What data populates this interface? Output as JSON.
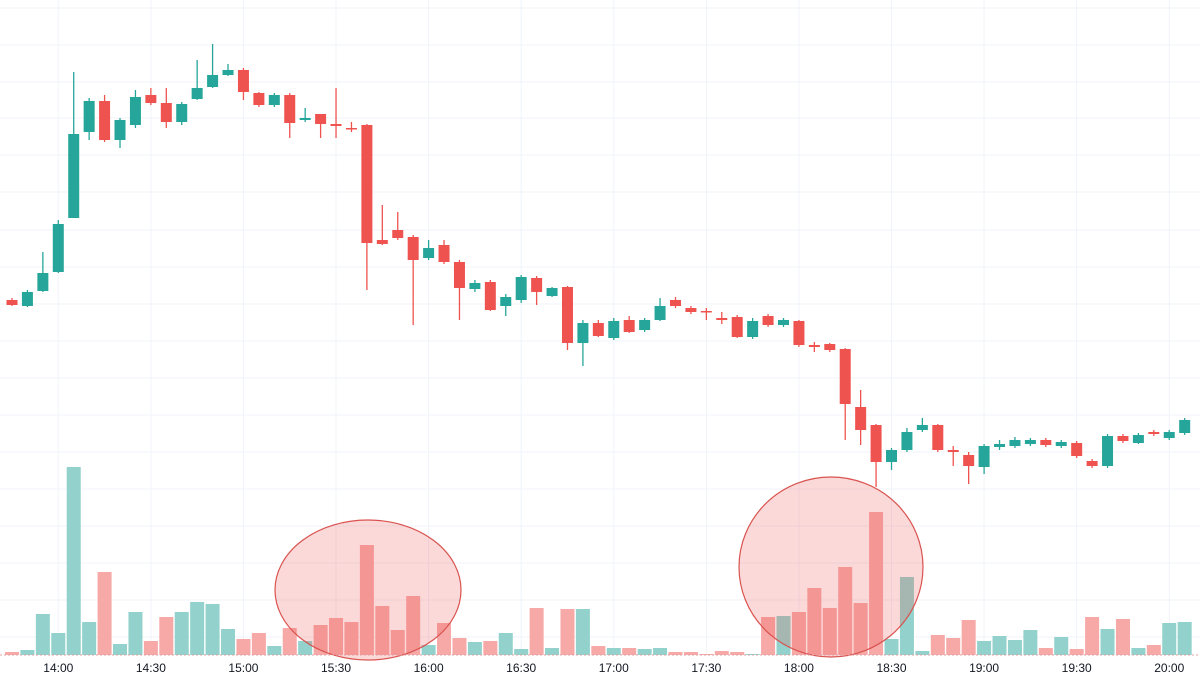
{
  "chart_data": {
    "type": "candlestick",
    "categories": [
      null,
      null,
      null,
      "14:00",
      null,
      null,
      null,
      null,
      null,
      "14:30",
      null,
      null,
      null,
      null,
      null,
      "15:00",
      null,
      null,
      null,
      null,
      null,
      "15:30",
      null,
      null,
      null,
      null,
      null,
      "16:00",
      null,
      null,
      null,
      null,
      null,
      "16:30",
      null,
      null,
      null,
      null,
      null,
      "17:00",
      null,
      null,
      null,
      null,
      null,
      "17:30",
      null,
      null,
      null,
      null,
      null,
      "18:00",
      null,
      null,
      null,
      null,
      null,
      "18:30",
      null,
      null,
      null,
      null,
      null,
      "19:00",
      null,
      null,
      null,
      null,
      null,
      "19:30",
      null,
      null,
      null,
      null,
      null,
      "20:00",
      null
    ],
    "open": [
      200,
      194,
      209,
      228,
      282,
      368,
      399,
      360,
      375,
      405,
      397,
      378,
      401,
      413,
      425,
      430,
      407,
      395,
      405,
      380,
      386,
      376,
      372,
      375,
      260,
      270,
      263,
      242,
      255,
      238,
      211,
      218,
      194,
      200,
      222,
      204,
      213,
      157,
      177,
      162,
      180,
      170,
      180,
      200,
      192,
      189,
      182,
      183,
      163,
      184,
      175,
      179,
      155,
      156,
      151,
      93,
      75,
      38,
      50,
      70,
      75,
      50,
      45,
      33,
      53,
      54,
      56,
      60,
      54,
      57,
      39,
      34,
      64,
      57,
      68,
      62,
      67
    ],
    "high": [
      202,
      210,
      248,
      280,
      428,
      402,
      405,
      382,
      410,
      412,
      412,
      398,
      440,
      456,
      436,
      432,
      408,
      407,
      407,
      392,
      386,
      412,
      378,
      376,
      295,
      288,
      265,
      260,
      260,
      240,
      220,
      220,
      206,
      225,
      224,
      213,
      214,
      180,
      180,
      182,
      184,
      182,
      202,
      203,
      194,
      192,
      188,
      185,
      182,
      186,
      182,
      180,
      158,
      157,
      152,
      110,
      76,
      52,
      72,
      82,
      76,
      54,
      48,
      56,
      60,
      63,
      62,
      62,
      60,
      59,
      41,
      66,
      66,
      67,
      70,
      70,
      82
    ],
    "low": [
      194,
      193,
      208,
      227,
      282,
      360,
      358,
      352,
      372,
      395,
      372,
      375,
      400,
      412,
      424,
      400,
      393,
      393,
      362,
      378,
      362,
      362,
      368,
      210,
      255,
      260,
      175,
      240,
      236,
      180,
      208,
      189,
      184,
      197,
      195,
      203,
      150,
      134,
      163,
      160,
      167,
      168,
      179,
      192,
      186,
      180,
      176,
      162,
      161,
      173,
      173,
      153,
      148,
      148,
      60,
      55,
      13,
      30,
      48,
      68,
      48,
      34,
      16,
      26,
      50,
      52,
      54,
      53,
      52,
      42,
      32,
      32,
      57,
      56,
      64,
      60,
      65
    ],
    "close": [
      195,
      208,
      227,
      276,
      366,
      399,
      360,
      380,
      403,
      397,
      378,
      396,
      412,
      425,
      430,
      408,
      395,
      405,
      377,
      382,
      376,
      374,
      371,
      257,
      256,
      262,
      240,
      252,
      238,
      212,
      217,
      190,
      203,
      223,
      208,
      212,
      157,
      177,
      164,
      179,
      168,
      180,
      194,
      194,
      188,
      188,
      180,
      163,
      179,
      175,
      180,
      155,
      153,
      150,
      96,
      70,
      38,
      50,
      68,
      75,
      50,
      48,
      34,
      54,
      56,
      60,
      60,
      55,
      58,
      44,
      34,
      64,
      59,
      65,
      66,
      68,
      80
    ],
    "volume": [
      3,
      5,
      41,
      22,
      188,
      33,
      83,
      11,
      43,
      14,
      38,
      43,
      53,
      51,
      26,
      16,
      22,
      9,
      27,
      14,
      30,
      37,
      33,
      110,
      49,
      25,
      59,
      10,
      32,
      17,
      13,
      14,
      22,
      6,
      47,
      7,
      46,
      46,
      9,
      7,
      7,
      6,
      7,
      3,
      3,
      1,
      4,
      3,
      1,
      38,
      39,
      43,
      67,
      47,
      88,
      52,
      143,
      16,
      78,
      4,
      20,
      17,
      35,
      14,
      19,
      15,
      25,
      7,
      18,
      6,
      38,
      26,
      36,
      7,
      10,
      32,
      33
    ],
    "ylim": [
      0,
      500
    ],
    "y2lim": [
      0,
      655
    ],
    "up_color": "#26a69a",
    "down_color": "#ef5350",
    "volume_up_color": "#93d2cc",
    "volume_down_color": "#f7a9a7",
    "grid": true
  }
}
